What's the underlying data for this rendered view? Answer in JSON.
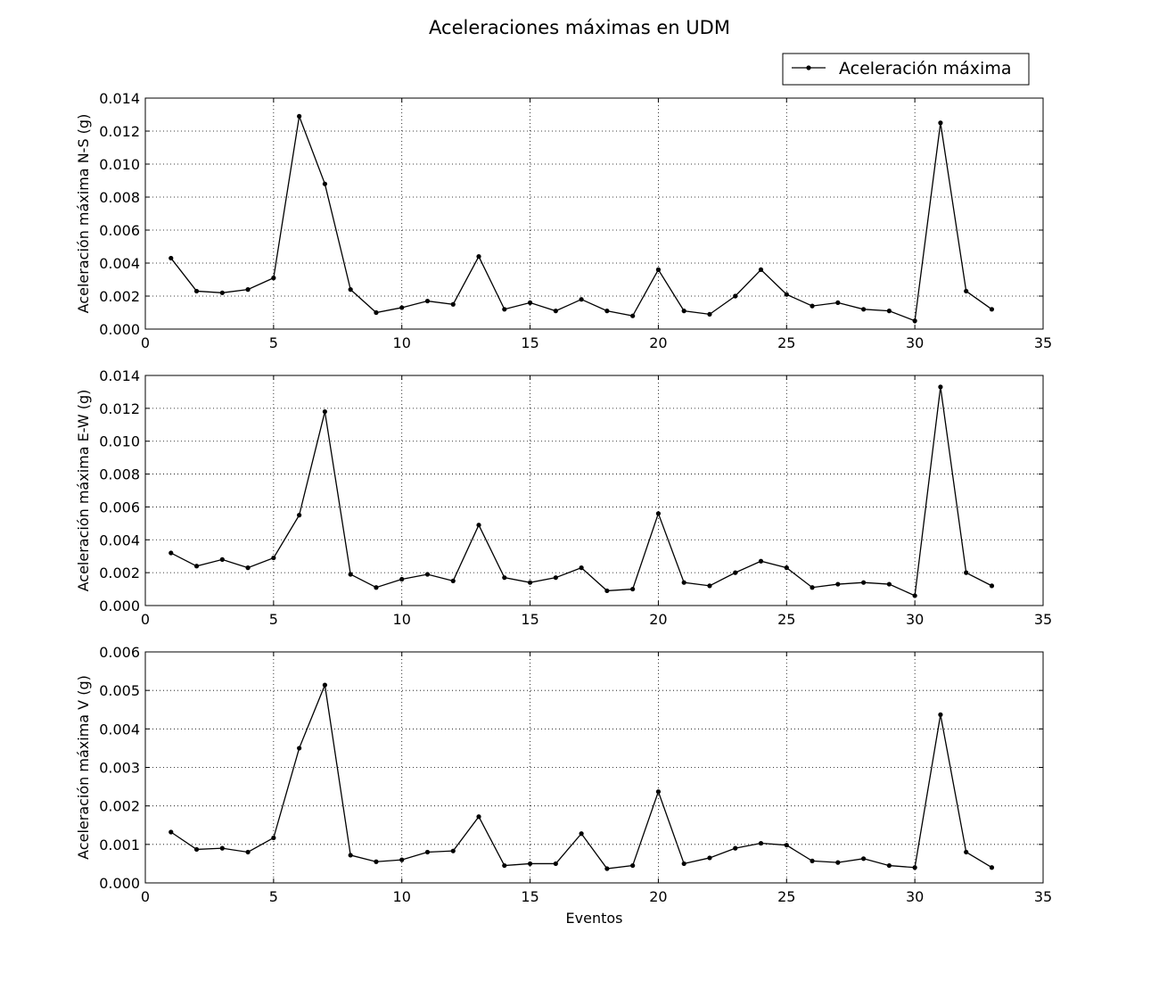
{
  "figure": {
    "title": "Aceleraciones máximas en UDM",
    "legend": {
      "label": "Aceleración máxima",
      "placement": "top-right"
    }
  },
  "chart_data": [
    {
      "type": "line",
      "title": "",
      "xlabel": "",
      "ylabel": "Aceleración máxima N-S (g)",
      "xlim": [
        0,
        35
      ],
      "ylim": [
        0,
        0.014
      ],
      "xticks": [
        "0",
        "5",
        "10",
        "15",
        "20",
        "25",
        "30",
        "35"
      ],
      "yticks": [
        "0.000",
        "0.002",
        "0.004",
        "0.006",
        "0.008",
        "0.010",
        "0.012",
        "0.014"
      ],
      "grid": true,
      "series": [
        {
          "name": "Aceleración máxima",
          "x": [
            1,
            2,
            3,
            4,
            5,
            6,
            7,
            8,
            9,
            10,
            11,
            12,
            13,
            14,
            15,
            16,
            17,
            18,
            19,
            20,
            21,
            22,
            23,
            24,
            25,
            26,
            27,
            28,
            29,
            30,
            31,
            32,
            33
          ],
          "values": [
            0.0043,
            0.0023,
            0.0022,
            0.0024,
            0.0031,
            0.0129,
            0.0088,
            0.0024,
            0.001,
            0.0013,
            0.0017,
            0.0015,
            0.0044,
            0.0012,
            0.0016,
            0.0011,
            0.0018,
            0.0011,
            0.0008,
            0.0036,
            0.0011,
            0.0009,
            0.002,
            0.0036,
            0.0021,
            0.0014,
            0.0016,
            0.0012,
            0.0011,
            0.0005,
            0.0125,
            0.0023,
            0.0012
          ]
        }
      ]
    },
    {
      "type": "line",
      "title": "",
      "xlabel": "",
      "ylabel": "Aceleración máxima E-W (g)",
      "xlim": [
        0,
        35
      ],
      "ylim": [
        0,
        0.014
      ],
      "xticks": [
        "0",
        "5",
        "10",
        "15",
        "20",
        "25",
        "30",
        "35"
      ],
      "yticks": [
        "0.000",
        "0.002",
        "0.004",
        "0.006",
        "0.008",
        "0.010",
        "0.012",
        "0.014"
      ],
      "grid": true,
      "series": [
        {
          "name": "Aceleración máxima",
          "x": [
            1,
            2,
            3,
            4,
            5,
            6,
            7,
            8,
            9,
            10,
            11,
            12,
            13,
            14,
            15,
            16,
            17,
            18,
            19,
            20,
            21,
            22,
            23,
            24,
            25,
            26,
            27,
            28,
            29,
            30,
            31,
            32,
            33
          ],
          "values": [
            0.0032,
            0.0024,
            0.0028,
            0.0023,
            0.0029,
            0.0055,
            0.0118,
            0.0019,
            0.0011,
            0.0016,
            0.0019,
            0.0015,
            0.0049,
            0.0017,
            0.0014,
            0.0017,
            0.0023,
            0.0009,
            0.001,
            0.0056,
            0.0014,
            0.0012,
            0.002,
            0.0027,
            0.0023,
            0.0011,
            0.0013,
            0.0014,
            0.0013,
            0.0006,
            0.0133,
            0.002,
            0.0012
          ]
        }
      ]
    },
    {
      "type": "line",
      "title": "",
      "xlabel": "Eventos",
      "ylabel": "Aceleración máxima V (g)",
      "xlim": [
        0,
        35
      ],
      "ylim": [
        0,
        0.006
      ],
      "xticks": [
        "0",
        "5",
        "10",
        "15",
        "20",
        "25",
        "30",
        "35"
      ],
      "yticks": [
        "0.000",
        "0.001",
        "0.002",
        "0.003",
        "0.004",
        "0.005",
        "0.006"
      ],
      "grid": true,
      "series": [
        {
          "name": "Aceleración máxima",
          "x": [
            1,
            2,
            3,
            4,
            5,
            6,
            7,
            8,
            9,
            10,
            11,
            12,
            13,
            14,
            15,
            16,
            17,
            18,
            19,
            20,
            21,
            22,
            23,
            24,
            25,
            26,
            27,
            28,
            29,
            30,
            31,
            32,
            33
          ],
          "values": [
            0.00132,
            0.00087,
            0.0009,
            0.0008,
            0.00117,
            0.0035,
            0.00514,
            0.00072,
            0.00055,
            0.0006,
            0.0008,
            0.00083,
            0.00172,
            0.00045,
            0.0005,
            0.0005,
            0.00128,
            0.00037,
            0.00045,
            0.00237,
            0.0005,
            0.00065,
            0.0009,
            0.00103,
            0.00098,
            0.00057,
            0.00053,
            0.00063,
            0.00045,
            0.0004,
            0.00437,
            0.0008,
            0.0004
          ]
        }
      ]
    }
  ],
  "colors": {
    "line": "#000000",
    "grid": "#000000",
    "background": "#ffffff"
  }
}
